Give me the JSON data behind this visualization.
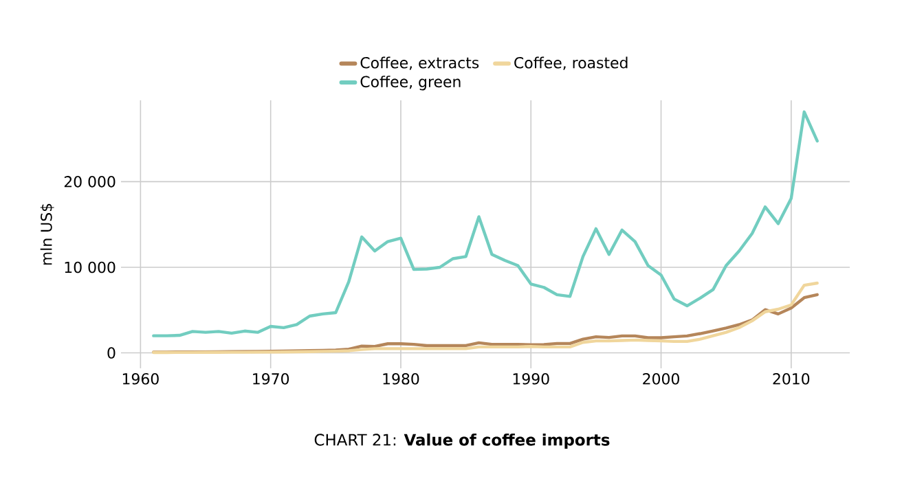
{
  "chart_data": {
    "type": "line",
    "title": "CHART 21: **Value of coffee imports**",
    "ylabel": "mln US$",
    "x": [
      1961,
      1962,
      1963,
      1964,
      1965,
      1966,
      1967,
      1968,
      1969,
      1970,
      1971,
      1972,
      1973,
      1974,
      1975,
      1976,
      1977,
      1978,
      1979,
      1980,
      1981,
      1982,
      1983,
      1984,
      1985,
      1986,
      1987,
      1988,
      1989,
      1990,
      1991,
      1992,
      1993,
      1994,
      1995,
      1996,
      1997,
      1998,
      1999,
      2000,
      2001,
      2002,
      2003,
      2004,
      2005,
      2006,
      2007,
      2008,
      2009,
      2010,
      2011,
      2012
    ],
    "series": [
      {
        "name": "Coffee, extracts",
        "color": "#b5865a",
        "values": [
          100,
          100,
          110,
          120,
          130,
          140,
          150,
          160,
          170,
          200,
          220,
          250,
          280,
          300,
          330,
          430,
          800,
          750,
          1070,
          1070,
          1000,
          850,
          850,
          850,
          850,
          1180,
          1000,
          1000,
          1000,
          960,
          970,
          1100,
          1100,
          1600,
          1880,
          1800,
          1980,
          1980,
          1770,
          1770,
          1880,
          1980,
          2250,
          2570,
          2900,
          3300,
          3850,
          5050,
          4550,
          5250,
          6450,
          6800
        ]
      },
      {
        "name": "Coffee, roasted",
        "color": "#f0d69c",
        "values": [
          50,
          50,
          60,
          60,
          70,
          70,
          80,
          80,
          90,
          100,
          110,
          130,
          150,
          180,
          200,
          250,
          400,
          500,
          500,
          500,
          500,
          500,
          500,
          500,
          500,
          700,
          700,
          700,
          700,
          750,
          700,
          700,
          700,
          1230,
          1400,
          1400,
          1450,
          1500,
          1450,
          1400,
          1340,
          1340,
          1600,
          2000,
          2400,
          2950,
          3750,
          4800,
          5100,
          5600,
          7900,
          8150
        ]
      },
      {
        "name": "Coffee, green",
        "color": "#72cdc0",
        "values": [
          2000,
          2000,
          2050,
          2500,
          2400,
          2500,
          2300,
          2550,
          2400,
          3100,
          2950,
          3300,
          4300,
          4550,
          4700,
          8300,
          13550,
          11900,
          13000,
          13400,
          9750,
          9800,
          10000,
          11000,
          11250,
          15900,
          11500,
          10800,
          10200,
          8050,
          7650,
          6800,
          6600,
          11250,
          14500,
          11500,
          14350,
          13000,
          10200,
          9100,
          6300,
          5500,
          6400,
          7400,
          10200,
          11900,
          13950,
          17050,
          15100,
          18050,
          28150,
          24750
        ]
      }
    ],
    "xlim": [
      1958.5,
      2014.5
    ],
    "ylim": [
      -1800,
      29500
    ],
    "xticks": [
      1960,
      1970,
      1980,
      1990,
      2000,
      2010
    ],
    "yticks": [
      0,
      {
        "value": 10000,
        "label": "10 000"
      },
      {
        "value": 20000,
        "label": "20 000"
      }
    ],
    "grid": true,
    "legend": "top",
    "marker": "none",
    "line_style": "solid"
  }
}
